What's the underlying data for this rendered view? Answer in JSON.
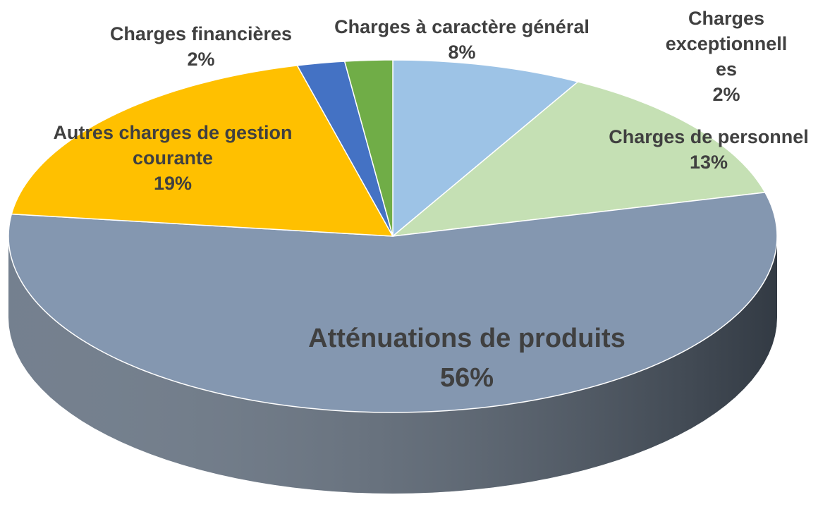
{
  "chart_data": {
    "type": "pie",
    "categories": [
      "Charges à caractère général",
      "Charges de personnel",
      "Atténuations de produits",
      "Autres charges de gestion courante",
      "Charges financières",
      "Charges exceptionnelles"
    ],
    "values": [
      8,
      13,
      56,
      19,
      2,
      2
    ],
    "value_labels": [
      "8%",
      "13%",
      "56%",
      "19%",
      "2%",
      "2%"
    ],
    "colors": [
      "#9dc3e6",
      "#c5e0b4",
      "#8497b0",
      "#ffc000",
      "#4472c4",
      "#70ad47"
    ]
  }
}
